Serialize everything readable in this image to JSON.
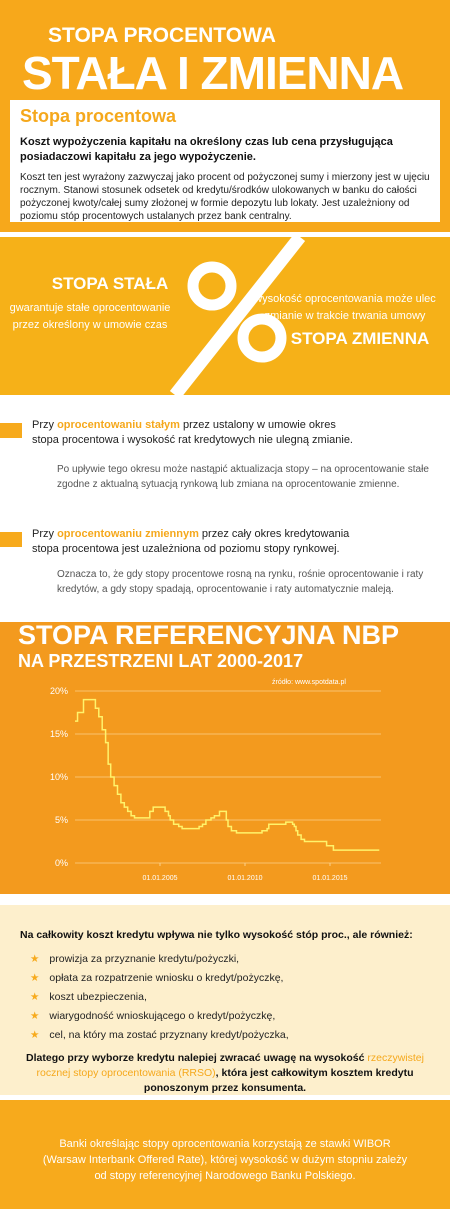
{
  "header": {
    "kicker": "STOPA PROCENTOWA",
    "title": "STAŁA I ZMIENNA"
  },
  "definition": {
    "heading": "Stopa procentowa",
    "lead": "Koszt wypożyczenia kapitału na określony czas lub cena przysługująca posiadaczowi kapitału za jego wypożyczenie.",
    "body": "Koszt ten jest wyrażony zazwyczaj jako procent od pożyczonej sumy i mierzony jest w ujęciu rocznym. Stanowi stosunek odsetek od kredytu/środków ulokowanych w banku do całości pożyczonej kwoty/całej sumy złożonej w formie depozytu lub lokaty. Jest uzależniony od poziomu stóp procentowych ustalanych przez bank centralny."
  },
  "comparison": {
    "fixed": {
      "title": "STOPA STAŁA",
      "lines": [
        "gwarantuje stałe oprocentowanie",
        "przez określony w umowie czas"
      ]
    },
    "variable": {
      "title": "STOPA ZMIENNA",
      "lines": [
        "wysokość oprocentowania może ulec",
        "zmianie w trakcie trwania umowy"
      ]
    }
  },
  "notes": [
    {
      "parts": [
        "Przy ",
        "oprocentowaniu stałym",
        " przez ustalony w umowie okres stopa procentowa i wysokość rat kredytowych nie ulegną zmianie."
      ],
      "detail": "Po upływie tego okresu może nastąpić aktualizacja stopy – na oprocentowanie stałe zgodne z aktualną sytuacją rynkową lub zmiana na oprocentowanie zmienne."
    },
    {
      "parts": [
        "Przy ",
        "oprocentowaniu zmiennym",
        " przez cały okres kredytowania stopa procentowa jest uzależniona od poziomu stopy rynkowej."
      ],
      "detail": "Oznacza to, że gdy stopy procentowe rosną na rynku, rośnie oprocentowanie i raty kredytów, a gdy stopy spadają, oprocentowanie i raty automatycznie maleją."
    }
  ],
  "chart_data": {
    "type": "line",
    "title": "STOPA REFERENCYJNA NBP",
    "subtitle": "NA PRZESTRZENI LAT 2000-2017",
    "source": "źródło: www.spotdata.pl",
    "color": "#fff36b",
    "grid": true,
    "x": [
      2000.0,
      2000.15,
      2000.15,
      2000.5,
      2000.5,
      2001.2,
      2001.2,
      2001.4,
      2001.4,
      2001.6,
      2001.6,
      2001.8,
      2001.8,
      2001.95,
      2001.95,
      2002.1,
      2002.1,
      2002.3,
      2002.3,
      2002.5,
      2002.5,
      2002.7,
      2002.7,
      2002.9,
      2002.9,
      2003.1,
      2003.1,
      2003.3,
      2003.3,
      2003.5,
      2003.5,
      2004.4,
      2004.4,
      2004.6,
      2004.6,
      2005.3,
      2005.3,
      2005.5,
      2005.5,
      2005.6,
      2005.6,
      2005.8,
      2005.8,
      2006.1,
      2006.1,
      2006.3,
      2006.3,
      2007.3,
      2007.3,
      2007.5,
      2007.5,
      2007.7,
      2007.7,
      2008.0,
      2008.0,
      2008.2,
      2008.2,
      2008.5,
      2008.5,
      2008.9,
      2008.9,
      2009.0,
      2009.0,
      2009.2,
      2009.2,
      2009.5,
      2009.5,
      2011.0,
      2011.0,
      2011.3,
      2011.3,
      2011.4,
      2011.4,
      2012.4,
      2012.4,
      2012.8,
      2012.8,
      2012.9,
      2012.9,
      2013.0,
      2013.0,
      2013.1,
      2013.1,
      2013.3,
      2013.3,
      2013.5,
      2013.5,
      2014.8,
      2014.8,
      2015.2,
      2015.2,
      2017.9
    ],
    "values": [
      16.5,
      16.5,
      17.5,
      17.5,
      19,
      19,
      18,
      18,
      17,
      17,
      15.5,
      15.5,
      14,
      14,
      11.5,
      11.5,
      10,
      10,
      9,
      9,
      8,
      8,
      7,
      7,
      6.5,
      6.5,
      6,
      6,
      5.5,
      5.5,
      5.25,
      5.25,
      6,
      6,
      6.5,
      6.5,
      6,
      6,
      5.5,
      5.5,
      5,
      5,
      4.5,
      4.5,
      4.25,
      4.25,
      4,
      4,
      4.25,
      4.25,
      4.5,
      4.5,
      5,
      5,
      5.25,
      5.25,
      5.5,
      5.5,
      6,
      6,
      5,
      5,
      4.25,
      4.25,
      3.75,
      3.75,
      3.5,
      3.5,
      3.75,
      3.75,
      4,
      4,
      4.5,
      4.5,
      4.75,
      4.75,
      4.5,
      4.5,
      4.25,
      4.25,
      3.75,
      3.75,
      3.25,
      3.25,
      2.75,
      2.75,
      2.5,
      2.5,
      2,
      2,
      1.5,
      1.5
    ],
    "xlim": [
      2000,
      2018
    ],
    "ylim": [
      0,
      20
    ],
    "xticks": [
      {
        "value": 2005,
        "label": "01.01.2005"
      },
      {
        "value": 2010,
        "label": "01.01.2010"
      },
      {
        "value": 2015,
        "label": "01.01.2015"
      }
    ],
    "yticks": [
      {
        "value": 0,
        "label": "0%"
      },
      {
        "value": 5,
        "label": "5%"
      },
      {
        "value": 10,
        "label": "10%"
      },
      {
        "value": 15,
        "label": "15%"
      },
      {
        "value": 20,
        "label": "20%"
      }
    ]
  },
  "costs": {
    "intro": "Na całkowity koszt kredytu wpływa nie tylko wysokość stóp proc., ale również:",
    "items": [
      "prowizja za przyznanie kredytu/pożyczki,",
      "opłata za rozpatrzenie wniosku o kredyt/pożyczkę,",
      "koszt ubezpieczenia,",
      "wiarygodność wnioskującego o kredyt/pożyczkę,",
      "cel, na który ma zostać przyznany kredyt/pożyczka,"
    ],
    "conclusion": [
      "Dlatego przy wyborze kredytu nalepiej zwracać uwagę na wysokość ",
      "rzeczywistej rocznej stopy oprocentowania (RRSO)",
      ", która jest całkowitym kosztem kredytu ponoszonym przez konsumenta."
    ]
  },
  "footer": {
    "text": "Banki określając stopy oprocentowania korzystają ze stawki WIBOR (Warsaw Interbank Offered Rate), której wysokość w dużym stopniu zależy od stopy referencyjnej Narodowego Banku Polskiego."
  }
}
